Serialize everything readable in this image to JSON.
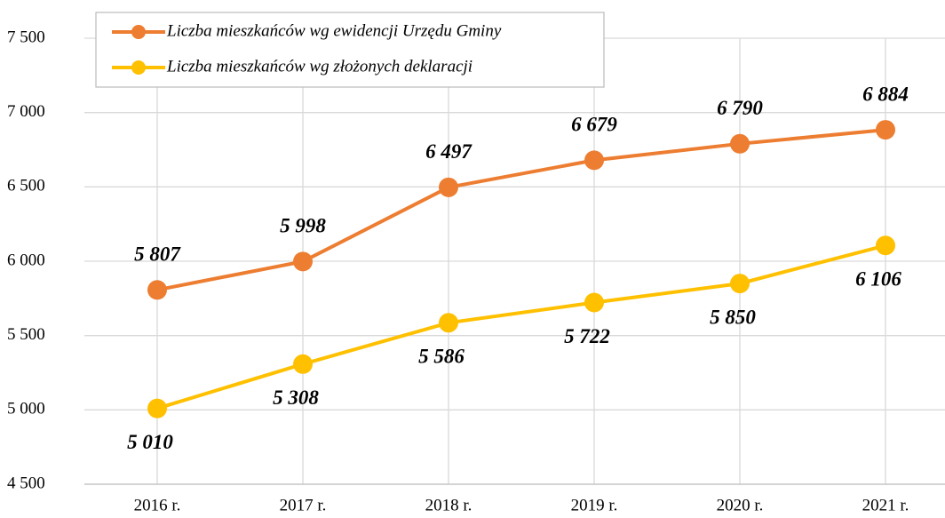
{
  "chart_data": {
    "type": "line",
    "categories": [
      "2016 r.",
      "2017 r.",
      "2018 r.",
      "2019 r.",
      "2020 r.",
      "2021 r."
    ],
    "series": [
      {
        "name": "Liczba mieszkańców wg ewidencji Urzędu Gminy",
        "color": "#ED7D31",
        "values": [
          5807,
          5998,
          6497,
          6679,
          6790,
          6884
        ],
        "value_labels": [
          "5 807",
          "5 998",
          "6 497",
          "6 679",
          "6 790",
          "6 884"
        ]
      },
      {
        "name": "Liczba mieszkańców wg złożonych deklaracji",
        "color": "#FFC000",
        "values": [
          5010,
          5308,
          5586,
          5722,
          5850,
          6106
        ],
        "value_labels": [
          "5 010",
          "5 308",
          "5 586",
          "5 722",
          "5 850",
          "6 106"
        ]
      }
    ],
    "ylim": [
      4500,
      7500
    ],
    "yticks": [
      {
        "value": 4500,
        "label": "4 500"
      },
      {
        "value": 5000,
        "label": "5 000"
      },
      {
        "value": 5500,
        "label": "5 500"
      },
      {
        "value": 6000,
        "label": "6 000"
      },
      {
        "value": 6500,
        "label": "6 500"
      },
      {
        "value": 7000,
        "label": "7 000"
      },
      {
        "value": 7500,
        "label": "7 500"
      }
    ],
    "grid": true,
    "legend": "top-left"
  }
}
